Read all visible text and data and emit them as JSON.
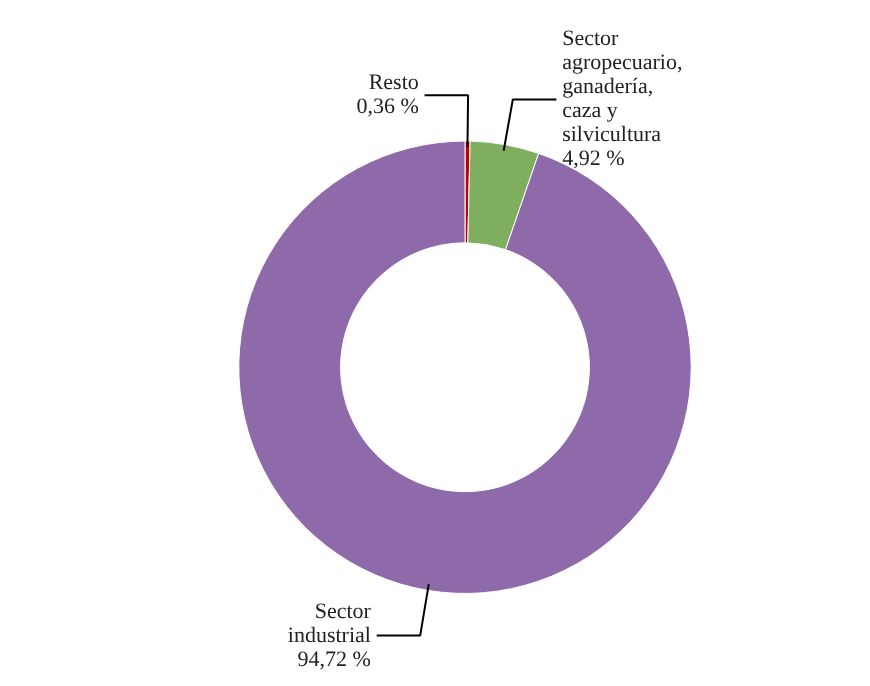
{
  "chart_data": {
    "type": "donut",
    "categories": [
      "Resto",
      "Sector agropecuario, ganadería, caza y silvicultura",
      "Sector industrial"
    ],
    "values": [
      0.36,
      4.92,
      94.72
    ],
    "colors": [
      "#c00000",
      "#7fae5f",
      "#8f6aab"
    ],
    "value_labels": [
      "0,36 %",
      "4,92 %",
      "94,72 %"
    ]
  }
}
